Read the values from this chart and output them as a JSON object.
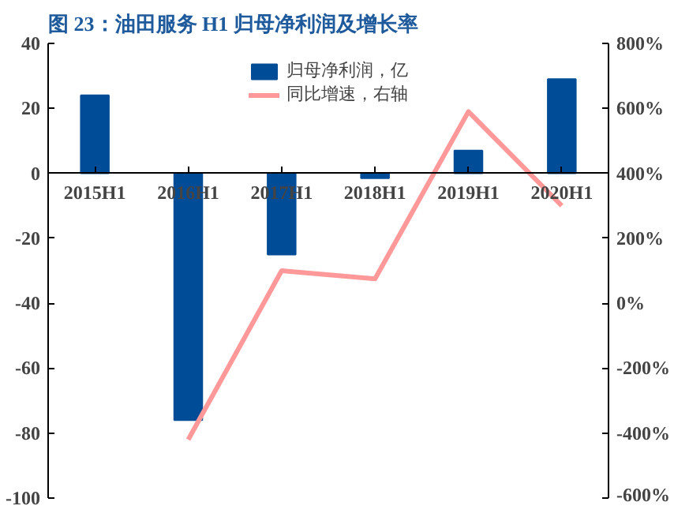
{
  "chart_data": {
    "type": "bar",
    "title": "图 23：油田服务 H1 归母净利润及增长率",
    "categories": [
      "2015H1",
      "2016H1",
      "2017H1",
      "2018H1",
      "2019H1",
      "2020H1"
    ],
    "series": [
      {
        "name": "归母净利润，亿",
        "color": "#004c97",
        "values": [
          24,
          -76,
          -25,
          -1.5,
          7,
          29
        ]
      },
      {
        "name": "同比增速，右轴",
        "type": "line",
        "axis": "y2",
        "color": "#ff9999",
        "values": [
          null,
          -420,
          100,
          75,
          590,
          300
        ]
      }
    ],
    "ylim": [
      -100,
      40
    ],
    "yticks": [
      -100,
      -80,
      -60,
      -40,
      -20,
      0,
      20,
      40
    ],
    "y2lim": [
      -600,
      800
    ],
    "y2ticks": [
      {
        "value": -600,
        "label": "-600%"
      },
      {
        "value": -400,
        "label": "-400%"
      },
      {
        "value": -200,
        "label": "-200%"
      },
      {
        "value": 0,
        "label": "0%"
      },
      {
        "value": 200,
        "label": "200%"
      },
      {
        "value": 400,
        "label": "400%"
      },
      {
        "value": 600,
        "label": "600%"
      },
      {
        "value": 800,
        "label": "800%"
      }
    ],
    "grid": false,
    "legend": "top"
  }
}
